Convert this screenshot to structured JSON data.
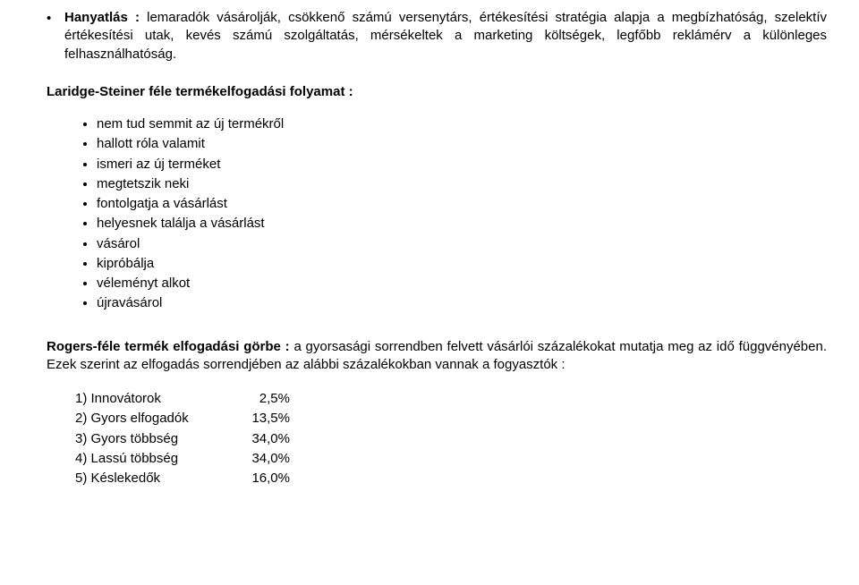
{
  "intro": {
    "lead_bold": "Hanyatlás :",
    "lead_rest": " lemaradók vásárolják, csökkenő számú versenytárs, értékesítési stratégia alapja a megbízhatóság, szelektív értékesítési utak, kevés számú szolgáltatás, mérsékeltek a marketing költségek, legfőbb reklámérv a különleges felhasználhatóság."
  },
  "laridge_title": "Laridge-Steiner féle termékelfogadási folyamat :",
  "laridge_items": [
    "nem tud semmit az új termékről",
    "hallott róla valamit",
    "ismeri az új terméket",
    "megtetszik neki",
    "fontolgatja a vásárlást",
    "helyesnek találja a vásárlást",
    "vásárol",
    "kipróbálja",
    "véleményt alkot",
    "újravásárol"
  ],
  "rogers": {
    "lead_bold": "Rogers-féle termék elfogadási görbe :",
    "lead_rest": " a gyorsasági sorrendben felvett vásárlói százalékokat mutatja meg az idő függvényében. Ezek szerint az elfogadás sorrendjében az alábbi százalékokban vannak a fogyasztók :"
  },
  "rogers_list": [
    {
      "n": "1)",
      "label": "Innovátorok",
      "value": "2,5%"
    },
    {
      "n": "2)",
      "label": "Gyors elfogadók",
      "value": "13,5%"
    },
    {
      "n": "3)",
      "label": "Gyors többség",
      "value": "34,0%"
    },
    {
      "n": "4)",
      "label": "Lassú többség",
      "value": "34,0%"
    },
    {
      "n": "5)",
      "label": "Késlekedők",
      "value": "16,0%"
    }
  ]
}
